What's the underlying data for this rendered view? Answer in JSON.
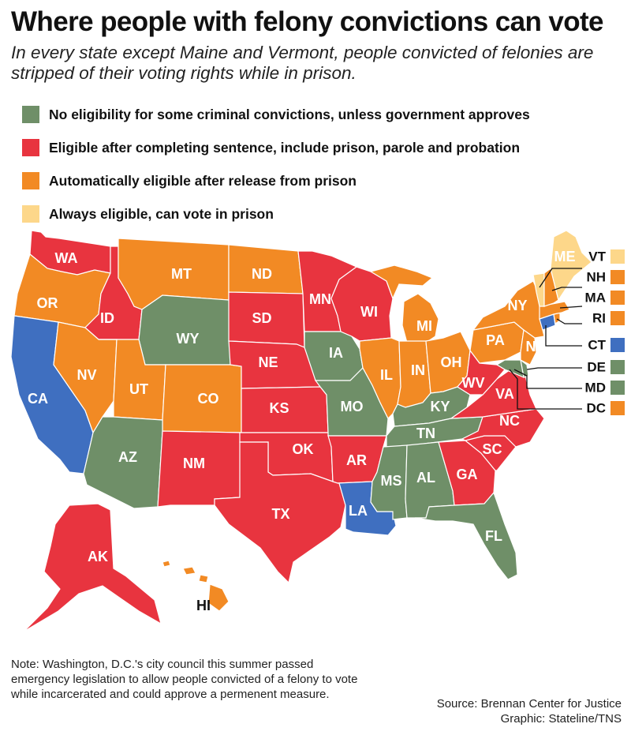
{
  "header": {
    "title": "Where people with felony convictions can vote",
    "subtitle": "In every state except Maine and Vermont, people convicted of felonies are stripped of their voting rights while in prison."
  },
  "legend": [
    {
      "label": "No eligibility for some criminal convictions, unless government approves",
      "color": "#6f8f68"
    },
    {
      "label": "Eligible after completing sentence, include prison, parole and probation",
      "color": "#e8343f"
    },
    {
      "label": "Automatically eligible after release from prison",
      "color": "#f28a24"
    },
    {
      "label": "Always eligible, can vote in prison",
      "color": "#fdd78a"
    }
  ],
  "map": {
    "states": {
      "WA": "Eligible after completing sentence",
      "OR": "Automatically eligible",
      "CA": "Blue",
      "ID": "Eligible after completing sentence",
      "NV": "Automatically eligible",
      "MT": "Automatically eligible",
      "WY": "No eligibility",
      "UT": "Automatically eligible",
      "CO": "Automatically eligible",
      "AZ": "No eligibility",
      "NM": "Eligible after completing sentence",
      "ND": "Automatically eligible",
      "SD": "Eligible after completing sentence",
      "NE": "Eligible after completing sentence",
      "KS": "Eligible after completing sentence",
      "OK": "Eligible after completing sentence",
      "TX": "Eligible after completing sentence",
      "MN": "Eligible after completing sentence",
      "IA": "No eligibility",
      "MO": "No eligibility",
      "AR": "Eligible after completing sentence",
      "LA": "Blue",
      "WI": "Eligible after completing sentence",
      "IL": "Automatically eligible",
      "MI": "Automatically eligible",
      "IN": "Automatically eligible",
      "OH": "Automatically eligible",
      "KY": "No eligibility",
      "TN": "No eligibility",
      "MS": "No eligibility",
      "AL": "No eligibility",
      "GA": "Eligible after completing sentence",
      "FL": "No eligibility",
      "SC": "Eligible after completing sentence",
      "NC": "Eligible after completing sentence",
      "VA": "Eligible after completing sentence",
      "WV": "Eligible after completing sentence",
      "PA": "Automatically eligible",
      "NY": "Automatically eligible",
      "NJ": "Automatically eligible",
      "ME": "Always eligible",
      "AK": "Eligible after completing sentence",
      "HI": "Automatically eligible"
    },
    "colors": {
      "green": "#6f8f68",
      "red": "#e8343f",
      "orange": "#f28a24",
      "yellow": "#fdd78a",
      "blue": "#3f6fc0"
    },
    "labels": {
      "WA": "WA",
      "OR": "OR",
      "CA": "CA",
      "ID": "ID",
      "NV": "NV",
      "MT": "MT",
      "WY": "WY",
      "UT": "UT",
      "CO": "CO",
      "AZ": "AZ",
      "NM": "NM",
      "ND": "ND",
      "SD": "SD",
      "NE": "NE",
      "KS": "KS",
      "OK": "OK",
      "TX": "TX",
      "MN": "MN",
      "IA": "IA",
      "MO": "MO",
      "AR": "AR",
      "LA": "LA",
      "WI": "WI",
      "IL": "IL",
      "MI": "MI",
      "IN": "IN",
      "OH": "OH",
      "KY": "KY",
      "TN": "TN",
      "MS": "MS",
      "AL": "AL",
      "GA": "GA",
      "FL": "FL",
      "SC": "SC",
      "NC": "NC",
      "VA": "VA",
      "WV": "WV",
      "PA": "PA",
      "NY": "NY",
      "NJ": "NJ",
      "ME": "ME",
      "AK": "AK",
      "HI": "HI"
    },
    "callouts": [
      {
        "label": "VT",
        "color": "#fdd78a"
      },
      {
        "label": "NH",
        "color": "#f28a24"
      },
      {
        "label": "MA",
        "color": "#f28a24"
      },
      {
        "label": "RI",
        "color": "#f28a24"
      },
      {
        "label": "CT",
        "color": "#3f6fc0"
      },
      {
        "label": "DE",
        "color": "#6f8f68"
      },
      {
        "label": "MD",
        "color": "#6f8f68"
      },
      {
        "label": "DC",
        "color": "#f28a24"
      }
    ]
  },
  "footer": {
    "note": "Note: Washington, D.C.'s city council this summer passed emergency legislation to allow people convicted of a felony to vote while incarcerated and could approve a permenent measure.",
    "source_line": "Source: Brennan Center for Justice",
    "graphic_line": "Graphic: Stateline/TNS"
  }
}
